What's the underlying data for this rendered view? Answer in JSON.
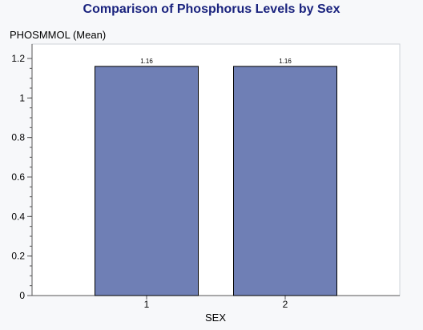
{
  "chart_data": {
    "type": "bar",
    "title": "Comparison of Phosphorus Levels by Sex",
    "ylabel": "PHOSMMOL (Mean)",
    "xlabel": "SEX",
    "categories": [
      "1",
      "2"
    ],
    "values": [
      1.16,
      1.16
    ],
    "data_labels": [
      "1.16",
      "1.16"
    ],
    "ylim": [
      0,
      1.2
    ],
    "yticks": [
      0,
      0.2,
      0.4,
      0.6,
      0.8,
      1,
      1.2
    ],
    "ytick_labels": [
      "0",
      "0.2",
      "0.4",
      "0.6",
      "0.8",
      "1",
      "1.2"
    ],
    "grid": false,
    "legend": "none"
  },
  "colors": {
    "background": "#f7f8fa",
    "plot_background": "#ffffff",
    "bar_fill": "#6f7fb5",
    "bar_stroke": "#000000",
    "title": "#1a237e",
    "axis": "#555555"
  }
}
